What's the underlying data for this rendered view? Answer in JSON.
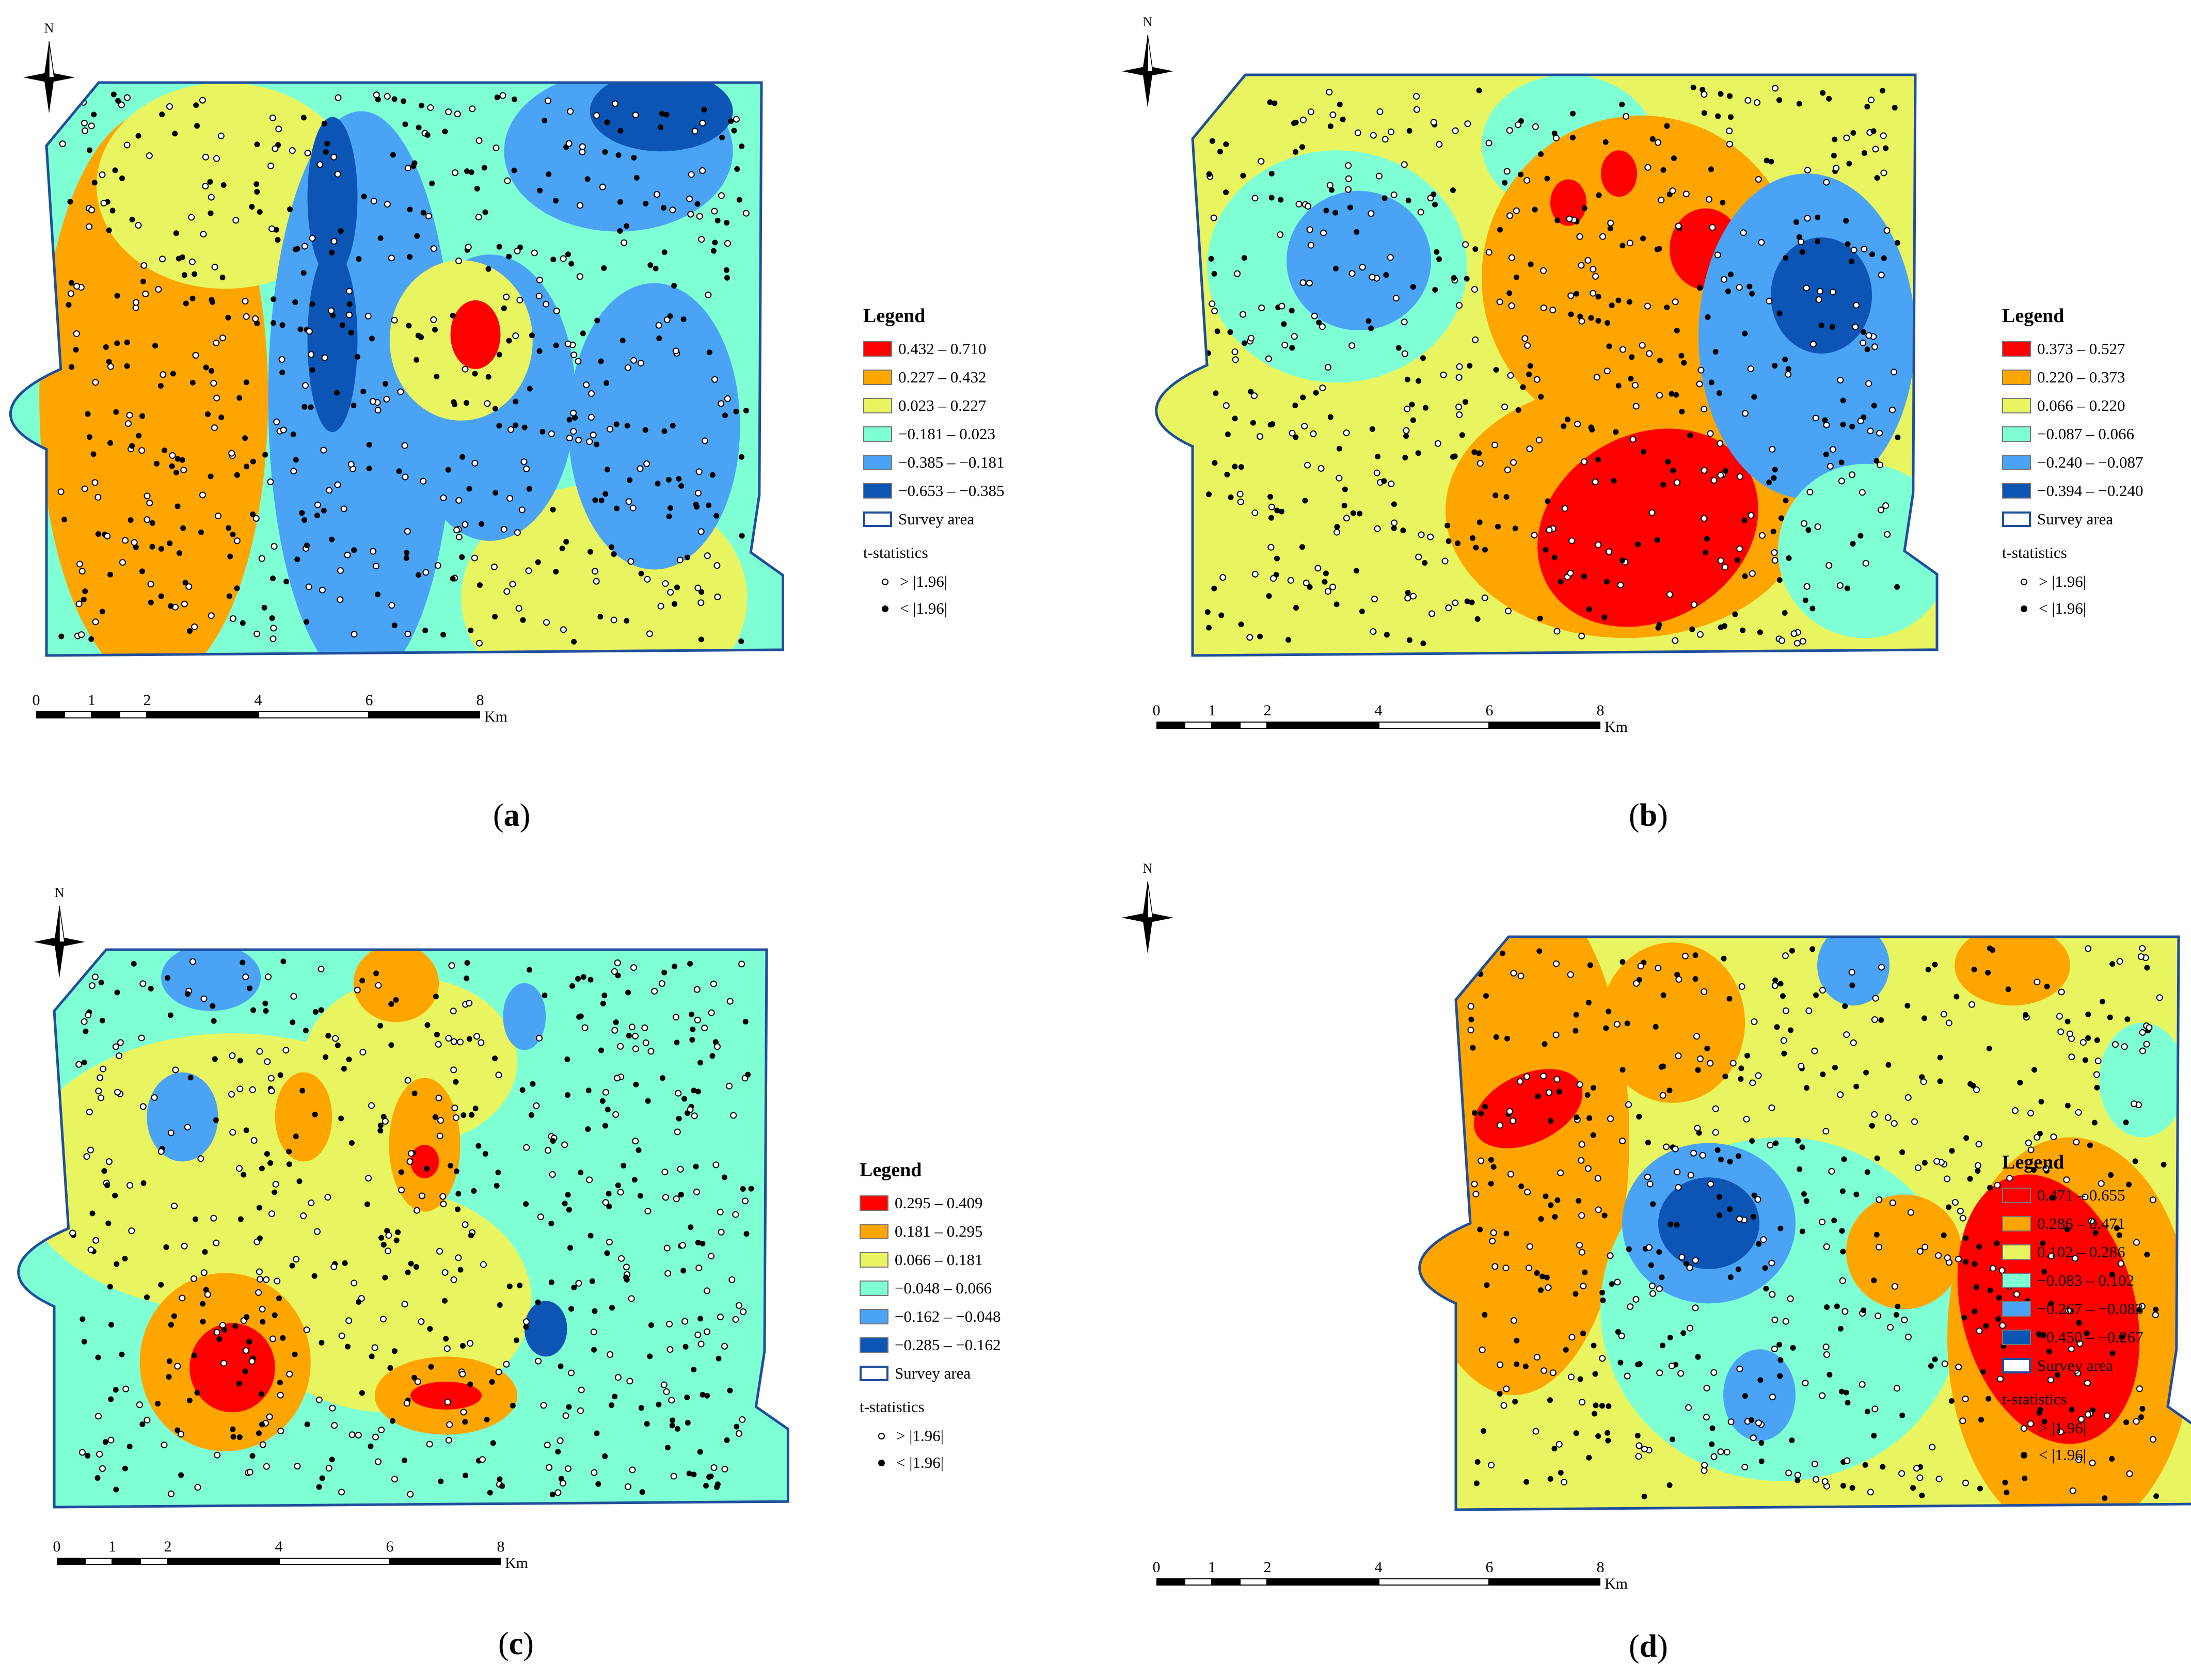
{
  "colors": {
    "class1": "#ff0000",
    "class2": "#ffa500",
    "class3": "#e8f560",
    "class4": "#7fffd4",
    "class5": "#4aa3f5",
    "class6": "#0c55b4",
    "boundary": "#1f4e9c"
  },
  "shared": {
    "legend_title": "Legend",
    "survey_area": "Survey area",
    "tstat_title": "t-statistics",
    "tstat_sig": "> |1.96|",
    "tstat_nonsig": "< |1.96|",
    "north": "N",
    "scale_ticks": [
      "0",
      "1",
      "2",
      "4",
      "6",
      "8"
    ],
    "scale_unit": "Km"
  },
  "panels": [
    {
      "caption_letter": "a",
      "legend_classes": [
        "0.432 – 0.710",
        "0.227 – 0.432",
        "0.023 – 0.227",
        "−0.181 – 0.023",
        "−0.385 – −0.181",
        "−0.653 – −0.385"
      ]
    },
    {
      "caption_letter": "b",
      "legend_classes": [
        "0.373 – 0.527",
        "0.220 – 0.373",
        "0.066 – 0.220",
        "−0.087 – 0.066",
        "−0.240 – −0.087",
        "−0.394 – −0.240"
      ]
    },
    {
      "caption_letter": "c",
      "legend_classes": [
        "0.295 – 0.409",
        "0.181 – 0.295",
        "0.066 – 0.181",
        "−0.048 – 0.066",
        "−0.162 – −0.048",
        "−0.285 – −0.162"
      ]
    },
    {
      "caption_letter": "d",
      "legend_classes": [
        "0.471 – 0.655",
        "0.286 – 0.471",
        "0.102 – 0.286",
        "−0.083 – 0.102",
        "−0.267 – −0.083",
        "−0.450 – −0.267"
      ]
    }
  ]
}
